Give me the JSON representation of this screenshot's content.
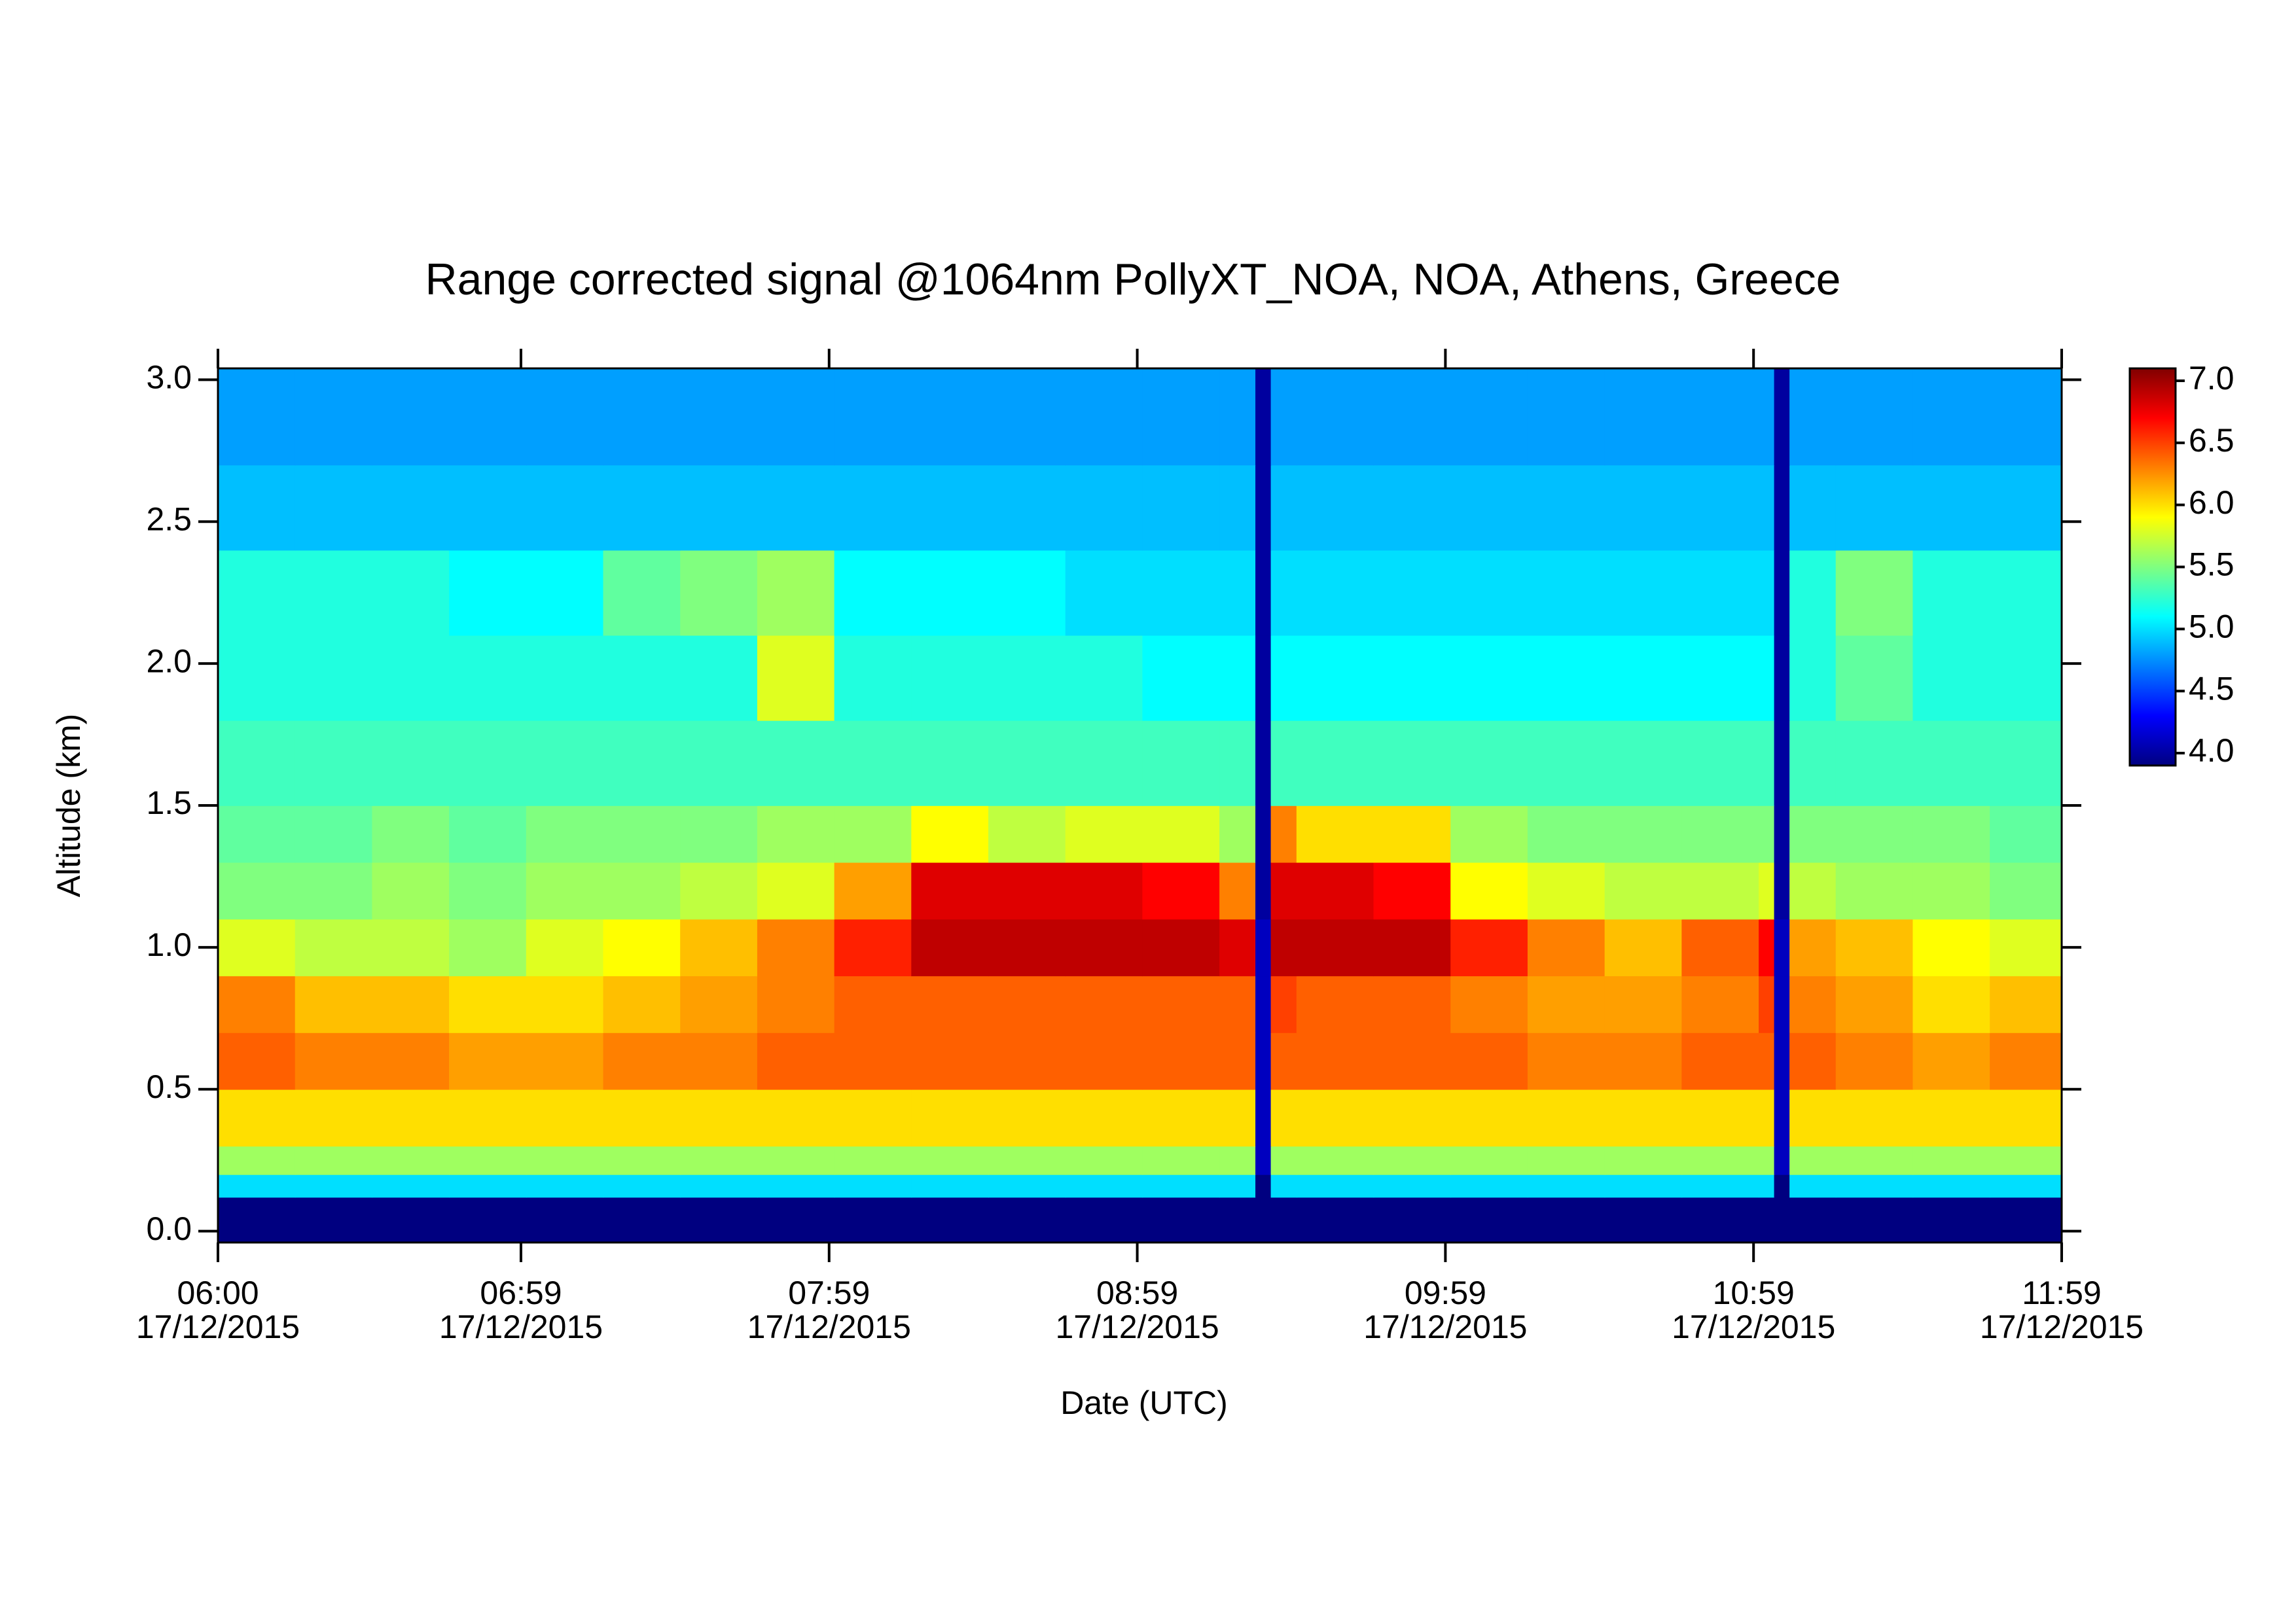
{
  "chart_data": {
    "type": "heatmap",
    "title": "Range corrected signal @1064nm  PollyXT_NOA, NOA, Athens, Greece",
    "xlabel": "Date (UTC)",
    "ylabel": "Altitude (km)",
    "colormap": "jet",
    "xlim": [
      "06:00",
      "11:59"
    ],
    "xticks": [
      {
        "value": "06:00",
        "label": [
          "06:00",
          "17/12/2015"
        ]
      },
      {
        "value": "06:59",
        "label": [
          "06:59",
          "17/12/2015"
        ]
      },
      {
        "value": "07:59",
        "label": [
          "07:59",
          "17/12/2015"
        ]
      },
      {
        "value": "08:59",
        "label": [
          "08:59",
          "17/12/2015"
        ]
      },
      {
        "value": "09:59",
        "label": [
          "09:59",
          "17/12/2015"
        ]
      },
      {
        "value": "10:59",
        "label": [
          "10:59",
          "17/12/2015"
        ]
      },
      {
        "value": "11:59",
        "label": [
          "11:59",
          "17/12/2015"
        ]
      }
    ],
    "ylim": [
      -0.04,
      3.04
    ],
    "yticks": [
      {
        "value": 0,
        "label": "0.0"
      },
      0.5,
      {
        "value": 1,
        "label": "1.0"
      },
      1.5,
      {
        "value": 2,
        "label": "2.0"
      },
      2.5,
      {
        "value": 3,
        "label": "3.0"
      }
    ],
    "zlim": [
      3.9,
      7.1
    ],
    "zticks": [
      {
        "value": 4,
        "label": "4.0"
      },
      4.5,
      {
        "value": 5,
        "label": "5.0"
      },
      5.5,
      {
        "value": 6,
        "label": "6.0"
      },
      6.5,
      {
        "value": 7,
        "label": "7.0"
      }
    ],
    "xbins": [
      "06:00",
      "06:15",
      "06:30",
      "06:45",
      "07:00",
      "07:15",
      "07:30",
      "07:45",
      "08:00",
      "08:15",
      "08:30",
      "08:45",
      "09:00",
      "09:15",
      "09:22",
      "09:25",
      "09:30",
      "09:45",
      "10:00",
      "10:15",
      "10:30",
      "10:45",
      "11:00",
      "11:03",
      "11:06",
      "11:15",
      "11:30",
      "11:45",
      "11:59"
    ],
    "ybins": [
      -0.04,
      0.12,
      0.2,
      0.3,
      0.5,
      0.7,
      0.9,
      1.1,
      1.3,
      1.5,
      1.8,
      2.1,
      2.4,
      2.7,
      3.04
    ],
    "z": [
      [
        3.9,
        3.9,
        3.9,
        3.9,
        3.9,
        3.9,
        3.9,
        3.9,
        3.9,
        3.9,
        3.9,
        3.9,
        3.9,
        3.9,
        3.9,
        3.9,
        3.9,
        3.9,
        3.9,
        3.9,
        3.9,
        3.9,
        3.9,
        3.9,
        3.9,
        3.9,
        3.9,
        3.9
      ],
      [
        5.0,
        5.0,
        5.0,
        5.0,
        5.0,
        5.0,
        5.0,
        5.0,
        5.0,
        5.0,
        5.0,
        5.0,
        5.0,
        5.0,
        3.9,
        5.0,
        5.0,
        5.0,
        5.0,
        5.0,
        5.0,
        5.0,
        5.0,
        3.9,
        5.0,
        5.0,
        5.0,
        5.0
      ],
      [
        5.6,
        5.6,
        5.6,
        5.6,
        5.6,
        5.6,
        5.6,
        5.6,
        5.6,
        5.6,
        5.6,
        5.6,
        5.6,
        5.6,
        4.1,
        5.6,
        5.6,
        5.6,
        5.6,
        5.6,
        5.6,
        5.6,
        5.6,
        4.1,
        5.6,
        5.6,
        5.6,
        5.6
      ],
      [
        6.0,
        6.0,
        6.0,
        6.0,
        6.0,
        6.0,
        6.0,
        6.0,
        6.0,
        6.0,
        6.0,
        6.0,
        6.0,
        6.0,
        4.1,
        6.0,
        6.0,
        6.0,
        6.0,
        6.0,
        6.0,
        6.0,
        6.0,
        4.1,
        6.0,
        6.0,
        6.0,
        6.0
      ],
      [
        6.4,
        6.3,
        6.3,
        6.2,
        6.2,
        6.3,
        6.3,
        6.4,
        6.4,
        6.4,
        6.4,
        6.4,
        6.4,
        6.4,
        4.1,
        6.4,
        6.4,
        6.4,
        6.4,
        6.3,
        6.3,
        6.4,
        6.4,
        4.1,
        6.4,
        6.3,
        6.2,
        6.3
      ],
      [
        6.3,
        6.1,
        6.1,
        6.0,
        6.0,
        6.1,
        6.2,
        6.3,
        6.4,
        6.4,
        6.4,
        6.4,
        6.4,
        6.4,
        4.1,
        6.5,
        6.4,
        6.4,
        6.3,
        6.2,
        6.2,
        6.3,
        6.5,
        4.1,
        6.3,
        6.2,
        6.0,
        6.1
      ],
      [
        5.8,
        5.7,
        5.7,
        5.6,
        5.8,
        5.9,
        6.1,
        6.3,
        6.6,
        6.9,
        6.9,
        6.9,
        6.9,
        6.8,
        4.1,
        6.9,
        6.9,
        6.9,
        6.6,
        6.3,
        6.1,
        6.4,
        6.7,
        4.1,
        6.2,
        6.1,
        5.9,
        5.8
      ],
      [
        5.5,
        5.5,
        5.6,
        5.5,
        5.6,
        5.6,
        5.7,
        5.8,
        6.2,
        6.8,
        6.8,
        6.8,
        6.7,
        6.3,
        4.0,
        6.8,
        6.8,
        6.7,
        5.9,
        5.8,
        5.7,
        5.7,
        5.8,
        4.0,
        5.7,
        5.6,
        5.6,
        5.5
      ],
      [
        5.4,
        5.4,
        5.5,
        5.4,
        5.5,
        5.5,
        5.5,
        5.6,
        5.6,
        5.9,
        5.7,
        5.8,
        5.8,
        5.6,
        4.0,
        6.3,
        6.0,
        6.0,
        5.6,
        5.5,
        5.5,
        5.5,
        5.5,
        4.0,
        5.5,
        5.5,
        5.5,
        5.4
      ],
      [
        5.3,
        5.3,
        5.3,
        5.3,
        5.3,
        5.3,
        5.3,
        5.3,
        5.3,
        5.3,
        5.3,
        5.3,
        5.3,
        5.3,
        4.0,
        5.3,
        5.3,
        5.3,
        5.3,
        5.3,
        5.3,
        5.3,
        5.3,
        4.0,
        5.3,
        5.3,
        5.3,
        5.3
      ],
      [
        5.2,
        5.2,
        5.2,
        5.2,
        5.2,
        5.2,
        5.2,
        5.8,
        5.2,
        5.2,
        5.2,
        5.2,
        5.1,
        5.1,
        4.0,
        5.1,
        5.1,
        5.1,
        5.1,
        5.1,
        5.1,
        5.1,
        5.1,
        4.0,
        5.2,
        5.4,
        5.2,
        5.2
      ],
      [
        5.2,
        5.2,
        5.2,
        5.1,
        5.1,
        5.4,
        5.5,
        5.6,
        5.1,
        5.1,
        5.1,
        5.0,
        5.0,
        5.0,
        4.0,
        5.0,
        5.0,
        5.0,
        5.0,
        5.0,
        5.0,
        5.0,
        5.0,
        4.0,
        5.2,
        5.5,
        5.2,
        5.2
      ],
      [
        4.9,
        4.9,
        4.9,
        4.9,
        4.9,
        4.9,
        4.9,
        4.9,
        4.9,
        4.9,
        4.9,
        4.9,
        4.9,
        4.9,
        4.0,
        4.9,
        4.9,
        4.9,
        4.9,
        4.9,
        4.9,
        4.9,
        4.9,
        4.0,
        4.9,
        4.9,
        4.9,
        4.9
      ],
      [
        4.8,
        4.8,
        4.8,
        4.8,
        4.8,
        4.8,
        4.8,
        4.8,
        4.8,
        4.8,
        4.8,
        4.8,
        4.8,
        4.8,
        4.0,
        4.8,
        4.8,
        4.8,
        4.8,
        4.8,
        4.8,
        4.8,
        4.8,
        4.0,
        4.8,
        4.8,
        4.8,
        4.8
      ]
    ]
  }
}
